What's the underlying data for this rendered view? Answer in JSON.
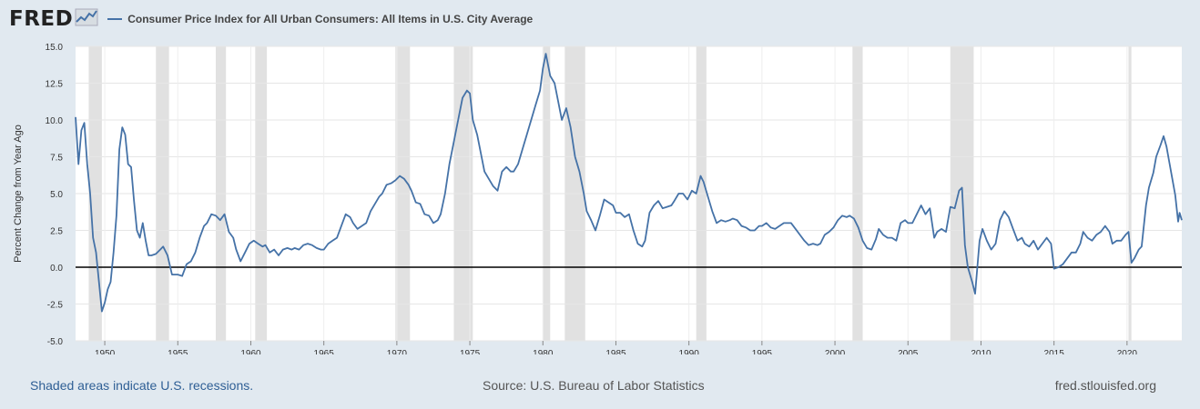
{
  "brand": {
    "name": "FRED",
    "icon": "trend-chart-icon"
  },
  "footer": {
    "left": "Shaded areas indicate U.S. recessions.",
    "center": "Source: U.S. Bureau of Labor Statistics",
    "right": "fred.stlouisfed.org"
  },
  "colors": {
    "line": "#4572a7",
    "recession": "#e1e1e1",
    "zero_line": "#000000",
    "background": "#e1e9f0"
  },
  "chart_data": {
    "type": "line",
    "title": "Consumer Price Index for All Urban Consumers: All Items in U.S. City Average",
    "ylabel": "Percent Change from Year Ago",
    "xlabel": "",
    "ylim": [
      -5.0,
      15.0
    ],
    "yticks": [
      "15.0",
      "12.5",
      "10.0",
      "7.5",
      "5.0",
      "2.5",
      "0.0",
      "-2.5",
      "-5.0"
    ],
    "xlim": [
      1948.0,
      2023.75
    ],
    "xticks": [
      "1950",
      "1955",
      "1960",
      "1965",
      "1970",
      "1975",
      "1980",
      "1985",
      "1990",
      "1995",
      "2000",
      "2005",
      "2010",
      "2015",
      "2020"
    ],
    "grid": true,
    "recessions": [
      [
        1948.9,
        1949.8
      ],
      [
        1953.5,
        1954.4
      ],
      [
        1957.6,
        1958.3
      ],
      [
        1960.3,
        1961.1
      ],
      [
        1969.9,
        1970.9
      ],
      [
        1973.9,
        1975.2
      ],
      [
        1980.0,
        1980.5
      ],
      [
        1981.5,
        1982.9
      ],
      [
        1990.5,
        1991.2
      ],
      [
        2001.2,
        2001.9
      ],
      [
        2007.9,
        2009.5
      ],
      [
        2020.1,
        2020.3
      ]
    ],
    "series": [
      {
        "values": [
          [
            1948.0,
            10.2
          ],
          [
            1948.2,
            7.0
          ],
          [
            1948.4,
            9.3
          ],
          [
            1948.6,
            9.8
          ],
          [
            1948.8,
            7.0
          ],
          [
            1949.0,
            5.0
          ],
          [
            1949.2,
            2.0
          ],
          [
            1949.4,
            1.0
          ],
          [
            1949.6,
            -1.0
          ],
          [
            1949.8,
            -3.0
          ],
          [
            1950.0,
            -2.4
          ],
          [
            1950.2,
            -1.5
          ],
          [
            1950.4,
            -1.0
          ],
          [
            1950.6,
            1.0
          ],
          [
            1950.8,
            3.5
          ],
          [
            1951.0,
            8.0
          ],
          [
            1951.2,
            9.5
          ],
          [
            1951.4,
            9.0
          ],
          [
            1951.6,
            7.0
          ],
          [
            1951.8,
            6.8
          ],
          [
            1952.0,
            4.5
          ],
          [
            1952.2,
            2.5
          ],
          [
            1952.4,
            2.0
          ],
          [
            1952.6,
            3.0
          ],
          [
            1952.8,
            1.8
          ],
          [
            1953.0,
            0.8
          ],
          [
            1953.2,
            0.8
          ],
          [
            1953.5,
            0.9
          ],
          [
            1953.8,
            1.2
          ],
          [
            1954.0,
            1.4
          ],
          [
            1954.3,
            0.8
          ],
          [
            1954.6,
            -0.5
          ],
          [
            1955.0,
            -0.5
          ],
          [
            1955.3,
            -0.6
          ],
          [
            1955.6,
            0.2
          ],
          [
            1955.9,
            0.4
          ],
          [
            1956.2,
            1.0
          ],
          [
            1956.5,
            2.0
          ],
          [
            1956.8,
            2.8
          ],
          [
            1957.0,
            3.0
          ],
          [
            1957.3,
            3.6
          ],
          [
            1957.6,
            3.5
          ],
          [
            1957.9,
            3.2
          ],
          [
            1958.2,
            3.6
          ],
          [
            1958.5,
            2.4
          ],
          [
            1958.8,
            2.0
          ],
          [
            1959.0,
            1.2
          ],
          [
            1959.3,
            0.4
          ],
          [
            1959.6,
            1.0
          ],
          [
            1959.9,
            1.6
          ],
          [
            1960.2,
            1.8
          ],
          [
            1960.5,
            1.6
          ],
          [
            1960.8,
            1.4
          ],
          [
            1961.0,
            1.5
          ],
          [
            1961.3,
            1.0
          ],
          [
            1961.6,
            1.2
          ],
          [
            1961.9,
            0.8
          ],
          [
            1962.2,
            1.2
          ],
          [
            1962.5,
            1.3
          ],
          [
            1962.8,
            1.2
          ],
          [
            1963.0,
            1.3
          ],
          [
            1963.3,
            1.2
          ],
          [
            1963.6,
            1.5
          ],
          [
            1963.9,
            1.6
          ],
          [
            1964.2,
            1.5
          ],
          [
            1964.5,
            1.3
          ],
          [
            1964.8,
            1.2
          ],
          [
            1965.0,
            1.2
          ],
          [
            1965.3,
            1.6
          ],
          [
            1965.6,
            1.8
          ],
          [
            1965.9,
            2.0
          ],
          [
            1966.2,
            2.8
          ],
          [
            1966.5,
            3.6
          ],
          [
            1966.8,
            3.4
          ],
          [
            1967.0,
            3.0
          ],
          [
            1967.3,
            2.6
          ],
          [
            1967.6,
            2.8
          ],
          [
            1967.9,
            3.0
          ],
          [
            1968.2,
            3.8
          ],
          [
            1968.5,
            4.3
          ],
          [
            1968.8,
            4.8
          ],
          [
            1969.0,
            5.0
          ],
          [
            1969.3,
            5.6
          ],
          [
            1969.6,
            5.7
          ],
          [
            1969.9,
            5.9
          ],
          [
            1970.2,
            6.2
          ],
          [
            1970.5,
            6.0
          ],
          [
            1970.8,
            5.6
          ],
          [
            1971.0,
            5.2
          ],
          [
            1971.3,
            4.4
          ],
          [
            1971.6,
            4.3
          ],
          [
            1971.9,
            3.6
          ],
          [
            1972.2,
            3.5
          ],
          [
            1972.5,
            3.0
          ],
          [
            1972.8,
            3.2
          ],
          [
            1973.0,
            3.6
          ],
          [
            1973.3,
            5.0
          ],
          [
            1973.6,
            7.0
          ],
          [
            1973.9,
            8.5
          ],
          [
            1974.2,
            10.0
          ],
          [
            1974.5,
            11.5
          ],
          [
            1974.8,
            12.0
          ],
          [
            1975.0,
            11.8
          ],
          [
            1975.2,
            10.0
          ],
          [
            1975.5,
            9.0
          ],
          [
            1975.8,
            7.5
          ],
          [
            1976.0,
            6.5
          ],
          [
            1976.3,
            6.0
          ],
          [
            1976.6,
            5.5
          ],
          [
            1976.9,
            5.2
          ],
          [
            1977.2,
            6.5
          ],
          [
            1977.5,
            6.8
          ],
          [
            1977.8,
            6.5
          ],
          [
            1978.0,
            6.5
          ],
          [
            1978.3,
            7.0
          ],
          [
            1978.6,
            8.0
          ],
          [
            1978.9,
            9.0
          ],
          [
            1979.2,
            10.0
          ],
          [
            1979.5,
            11.0
          ],
          [
            1979.8,
            12.0
          ],
          [
            1980.0,
            13.5
          ],
          [
            1980.2,
            14.5
          ],
          [
            1980.5,
            13.0
          ],
          [
            1980.8,
            12.5
          ],
          [
            1981.0,
            11.5
          ],
          [
            1981.3,
            10.0
          ],
          [
            1981.6,
            10.8
          ],
          [
            1981.9,
            9.5
          ],
          [
            1982.2,
            7.5
          ],
          [
            1982.5,
            6.5
          ],
          [
            1982.8,
            5.0
          ],
          [
            1983.0,
            3.8
          ],
          [
            1983.3,
            3.2
          ],
          [
            1983.6,
            2.5
          ],
          [
            1983.9,
            3.5
          ],
          [
            1984.2,
            4.6
          ],
          [
            1984.5,
            4.4
          ],
          [
            1984.8,
            4.2
          ],
          [
            1985.0,
            3.7
          ],
          [
            1985.3,
            3.7
          ],
          [
            1985.6,
            3.4
          ],
          [
            1985.9,
            3.6
          ],
          [
            1986.2,
            2.5
          ],
          [
            1986.5,
            1.6
          ],
          [
            1986.8,
            1.4
          ],
          [
            1987.0,
            1.8
          ],
          [
            1987.3,
            3.7
          ],
          [
            1987.6,
            4.2
          ],
          [
            1987.9,
            4.5
          ],
          [
            1988.2,
            4.0
          ],
          [
            1988.5,
            4.1
          ],
          [
            1988.8,
            4.2
          ],
          [
            1989.0,
            4.5
          ],
          [
            1989.3,
            5.0
          ],
          [
            1989.6,
            5.0
          ],
          [
            1989.9,
            4.6
          ],
          [
            1990.2,
            5.2
          ],
          [
            1990.5,
            5.0
          ],
          [
            1990.8,
            6.2
          ],
          [
            1991.0,
            5.8
          ],
          [
            1991.3,
            4.8
          ],
          [
            1991.6,
            3.8
          ],
          [
            1991.9,
            3.0
          ],
          [
            1992.2,
            3.2
          ],
          [
            1992.5,
            3.1
          ],
          [
            1992.8,
            3.2
          ],
          [
            1993.0,
            3.3
          ],
          [
            1993.3,
            3.2
          ],
          [
            1993.6,
            2.8
          ],
          [
            1993.9,
            2.7
          ],
          [
            1994.2,
            2.5
          ],
          [
            1994.5,
            2.5
          ],
          [
            1994.8,
            2.8
          ],
          [
            1995.0,
            2.8
          ],
          [
            1995.3,
            3.0
          ],
          [
            1995.6,
            2.7
          ],
          [
            1995.9,
            2.6
          ],
          [
            1996.2,
            2.8
          ],
          [
            1996.5,
            3.0
          ],
          [
            1996.8,
            3.0
          ],
          [
            1997.0,
            3.0
          ],
          [
            1997.3,
            2.6
          ],
          [
            1997.6,
            2.2
          ],
          [
            1997.9,
            1.8
          ],
          [
            1998.2,
            1.5
          ],
          [
            1998.5,
            1.6
          ],
          [
            1998.8,
            1.5
          ],
          [
            1999.0,
            1.6
          ],
          [
            1999.3,
            2.2
          ],
          [
            1999.6,
            2.4
          ],
          [
            1999.9,
            2.7
          ],
          [
            2000.2,
            3.2
          ],
          [
            2000.5,
            3.5
          ],
          [
            2000.8,
            3.4
          ],
          [
            2001.0,
            3.5
          ],
          [
            2001.3,
            3.3
          ],
          [
            2001.6,
            2.7
          ],
          [
            2001.9,
            1.8
          ],
          [
            2002.2,
            1.3
          ],
          [
            2002.5,
            1.2
          ],
          [
            2002.8,
            1.9
          ],
          [
            2003.0,
            2.6
          ],
          [
            2003.3,
            2.2
          ],
          [
            2003.6,
            2.0
          ],
          [
            2003.9,
            2.0
          ],
          [
            2004.2,
            1.8
          ],
          [
            2004.5,
            3.0
          ],
          [
            2004.8,
            3.2
          ],
          [
            2005.0,
            3.0
          ],
          [
            2005.3,
            3.0
          ],
          [
            2005.6,
            3.6
          ],
          [
            2005.9,
            4.2
          ],
          [
            2006.2,
            3.6
          ],
          [
            2006.5,
            4.0
          ],
          [
            2006.8,
            2.0
          ],
          [
            2007.0,
            2.4
          ],
          [
            2007.3,
            2.6
          ],
          [
            2007.6,
            2.4
          ],
          [
            2007.9,
            4.1
          ],
          [
            2008.2,
            4.0
          ],
          [
            2008.5,
            5.2
          ],
          [
            2008.7,
            5.4
          ],
          [
            2008.9,
            1.5
          ],
          [
            2009.1,
            0.0
          ],
          [
            2009.4,
            -1.0
          ],
          [
            2009.6,
            -1.8
          ],
          [
            2009.9,
            1.8
          ],
          [
            2010.1,
            2.6
          ],
          [
            2010.4,
            1.8
          ],
          [
            2010.7,
            1.2
          ],
          [
            2011.0,
            1.6
          ],
          [
            2011.3,
            3.2
          ],
          [
            2011.6,
            3.8
          ],
          [
            2011.9,
            3.4
          ],
          [
            2012.2,
            2.6
          ],
          [
            2012.5,
            1.8
          ],
          [
            2012.8,
            2.0
          ],
          [
            2013.0,
            1.6
          ],
          [
            2013.3,
            1.4
          ],
          [
            2013.6,
            1.8
          ],
          [
            2013.9,
            1.2
          ],
          [
            2014.2,
            1.6
          ],
          [
            2014.5,
            2.0
          ],
          [
            2014.8,
            1.6
          ],
          [
            2015.0,
            -0.1
          ],
          [
            2015.3,
            0.0
          ],
          [
            2015.6,
            0.2
          ],
          [
            2015.9,
            0.6
          ],
          [
            2016.2,
            1.0
          ],
          [
            2016.5,
            1.0
          ],
          [
            2016.8,
            1.6
          ],
          [
            2017.0,
            2.4
          ],
          [
            2017.3,
            2.0
          ],
          [
            2017.6,
            1.8
          ],
          [
            2017.9,
            2.2
          ],
          [
            2018.2,
            2.4
          ],
          [
            2018.5,
            2.8
          ],
          [
            2018.8,
            2.4
          ],
          [
            2019.0,
            1.6
          ],
          [
            2019.3,
            1.8
          ],
          [
            2019.6,
            1.8
          ],
          [
            2019.9,
            2.2
          ],
          [
            2020.1,
            2.4
          ],
          [
            2020.3,
            0.3
          ],
          [
            2020.5,
            0.6
          ],
          [
            2020.8,
            1.2
          ],
          [
            2021.0,
            1.4
          ],
          [
            2021.3,
            4.2
          ],
          [
            2021.5,
            5.4
          ],
          [
            2021.8,
            6.4
          ],
          [
            2022.0,
            7.5
          ],
          [
            2022.3,
            8.3
          ],
          [
            2022.5,
            8.9
          ],
          [
            2022.7,
            8.2
          ],
          [
            2022.9,
            7.1
          ],
          [
            2023.1,
            6.0
          ],
          [
            2023.3,
            4.9
          ],
          [
            2023.5,
            3.1
          ],
          [
            2023.6,
            3.7
          ],
          [
            2023.75,
            3.2
          ]
        ]
      }
    ]
  }
}
